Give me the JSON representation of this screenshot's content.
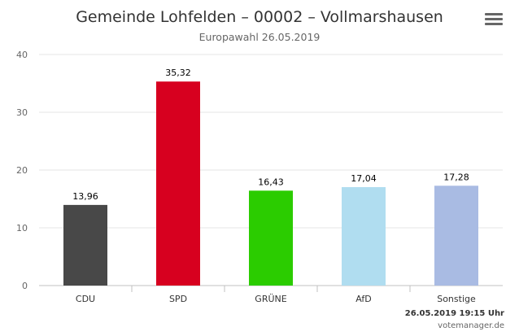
{
  "chart_data": {
    "type": "bar",
    "title": "Gemeinde Lohfelden – 00002 – Vollmarshausen",
    "subtitle": "Europawahl 26.05.2019",
    "categories": [
      "CDU",
      "SPD",
      "GRÜNE",
      "AfD",
      "Sonstige"
    ],
    "values": [
      13.96,
      35.32,
      16.43,
      17.04,
      17.28
    ],
    "value_labels": [
      "13,96",
      "35,32",
      "16,43",
      "17,04",
      "17,28"
    ],
    "colors": [
      "#484848",
      "#d7001f",
      "#2bcc00",
      "#b0ddf0",
      "#a9bbe3"
    ],
    "ylim": [
      0,
      40
    ],
    "yticks": [
      0,
      10,
      20,
      30,
      40
    ],
    "xlabel": "",
    "ylabel": "",
    "grid": true,
    "legend": "none"
  },
  "footer": {
    "timestamp": "26.05.2019 19:15 Uhr",
    "credit": "votemanager.de"
  },
  "menu": {
    "icon": "hamburger-menu-icon"
  }
}
